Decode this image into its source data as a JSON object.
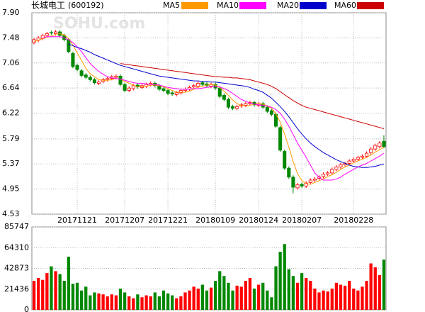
{
  "chart_data": {
    "type": "candlestick",
    "title": "长城电工",
    "code": "(600192)",
    "watermark": "SOHU.com",
    "up_color": "#ff0000",
    "down_color": "#008800",
    "grid": true,
    "categories": [
      null,
      null,
      null,
      null,
      null,
      null,
      null,
      null,
      null,
      null,
      "20171121",
      null,
      null,
      null,
      null,
      null,
      null,
      null,
      null,
      null,
      null,
      "20171207",
      null,
      null,
      null,
      null,
      null,
      null,
      null,
      null,
      null,
      "20171221",
      null,
      null,
      null,
      null,
      null,
      null,
      null,
      null,
      null,
      null,
      "20180109",
      null,
      null,
      null,
      null,
      null,
      null,
      null,
      null,
      null,
      "20180124",
      null,
      null,
      null,
      null,
      null,
      null,
      null,
      null,
      null,
      "20180207",
      null,
      null,
      null,
      null,
      null,
      null,
      null,
      null,
      null,
      null,
      null,
      "20180228",
      null,
      null,
      null,
      null,
      null,
      null,
      null
    ],
    "open": [
      7.4,
      7.44,
      7.47,
      7.52,
      7.57,
      7.55,
      7.58,
      7.52,
      7.45,
      7.22,
      7.02,
      6.93,
      6.86,
      6.82,
      6.78,
      6.72,
      6.75,
      6.78,
      6.8,
      6.82,
      6.84,
      6.7,
      6.6,
      6.63,
      6.69,
      6.65,
      6.67,
      6.7,
      6.72,
      6.68,
      6.63,
      6.6,
      6.56,
      6.53,
      6.56,
      6.6,
      6.62,
      6.66,
      6.67,
      6.73,
      6.71,
      6.67,
      6.7,
      6.64,
      6.52,
      6.45,
      6.33,
      6.3,
      6.34,
      6.35,
      6.38,
      6.4,
      6.35,
      6.38,
      6.32,
      6.26,
      6.2,
      5.98,
      5.58,
      5.3,
      5.15,
      4.97,
      5.03,
      5.0,
      5.06,
      5.1,
      5.13,
      5.16,
      5.2,
      5.22,
      5.28,
      5.32,
      5.36,
      5.38,
      5.42,
      5.45,
      5.48,
      5.5,
      5.56,
      5.62,
      5.66,
      5.75
    ],
    "high": [
      7.48,
      7.51,
      7.55,
      7.58,
      7.6,
      7.61,
      7.61,
      7.55,
      7.48,
      7.25,
      7.05,
      6.96,
      6.89,
      6.85,
      6.81,
      6.77,
      6.81,
      6.83,
      6.86,
      6.87,
      6.87,
      6.73,
      6.67,
      6.71,
      6.72,
      6.71,
      6.73,
      6.75,
      6.75,
      6.71,
      6.66,
      6.63,
      6.59,
      6.59,
      6.63,
      6.65,
      6.68,
      6.71,
      6.75,
      6.76,
      6.74,
      6.73,
      6.73,
      6.67,
      6.55,
      6.48,
      6.36,
      6.36,
      6.39,
      6.41,
      6.43,
      6.43,
      6.41,
      6.41,
      6.35,
      6.29,
      6.23,
      6.01,
      5.61,
      5.33,
      5.18,
      5.05,
      5.06,
      5.08,
      5.13,
      5.15,
      5.18,
      5.23,
      5.25,
      5.31,
      5.35,
      5.39,
      5.41,
      5.45,
      5.48,
      5.51,
      5.53,
      5.58,
      5.65,
      5.71,
      5.75,
      5.85
    ],
    "low": [
      7.37,
      7.41,
      7.44,
      7.49,
      7.53,
      7.52,
      7.49,
      7.42,
      7.22,
      6.97,
      6.92,
      6.82,
      6.79,
      6.75,
      6.7,
      6.69,
      6.72,
      6.75,
      6.77,
      6.79,
      6.67,
      6.57,
      6.57,
      6.6,
      6.63,
      6.62,
      6.64,
      6.67,
      6.65,
      6.59,
      6.57,
      6.52,
      6.51,
      6.5,
      6.53,
      6.57,
      6.59,
      6.63,
      6.64,
      6.67,
      6.65,
      6.64,
      6.61,
      6.47,
      6.42,
      6.29,
      6.27,
      6.27,
      6.31,
      6.32,
      6.35,
      6.33,
      6.32,
      6.29,
      6.22,
      6.17,
      5.97,
      5.57,
      5.27,
      5.12,
      4.88,
      4.94,
      4.97,
      4.97,
      5.03,
      5.07,
      5.1,
      5.13,
      5.17,
      5.19,
      5.25,
      5.29,
      5.33,
      5.35,
      5.39,
      5.42,
      5.45,
      5.47,
      5.53,
      5.59,
      5.63,
      5.63
    ],
    "close": [
      7.45,
      7.48,
      7.52,
      7.55,
      7.56,
      7.58,
      7.52,
      7.45,
      7.25,
      7.0,
      6.95,
      6.85,
      6.82,
      6.78,
      6.73,
      6.74,
      6.78,
      6.8,
      6.83,
      6.84,
      6.7,
      6.6,
      6.64,
      6.68,
      6.66,
      6.68,
      6.7,
      6.72,
      6.68,
      6.62,
      6.6,
      6.55,
      6.54,
      6.56,
      6.6,
      6.62,
      6.65,
      6.68,
      6.72,
      6.7,
      6.68,
      6.7,
      6.64,
      6.5,
      6.45,
      6.32,
      6.3,
      6.33,
      6.36,
      6.38,
      6.4,
      6.36,
      6.38,
      6.32,
      6.25,
      6.2,
      6.0,
      5.6,
      5.3,
      5.15,
      4.98,
      5.02,
      5.0,
      5.05,
      5.1,
      5.12,
      5.15,
      5.2,
      5.22,
      5.28,
      5.32,
      5.36,
      5.38,
      5.42,
      5.45,
      5.48,
      5.5,
      5.55,
      5.62,
      5.68,
      5.72,
      5.66
    ],
    "ylim": [
      4.53,
      7.9
    ],
    "yticks": [
      {
        "value": 7.9,
        "label": "7.90"
      },
      7.48,
      7.06,
      6.64,
      6.22,
      5.79,
      5.37,
      4.95,
      4.53
    ],
    "series": [
      {
        "name": "MA5",
        "color": "#ff9900",
        "values": [
          7.42,
          7.44,
          7.47,
          7.49,
          7.51,
          7.54,
          7.55,
          7.53,
          7.47,
          7.36,
          7.23,
          7.1,
          6.97,
          6.88,
          6.83,
          6.78,
          6.77,
          6.77,
          6.78,
          6.8,
          6.79,
          6.75,
          6.72,
          6.69,
          6.66,
          6.67,
          6.67,
          6.69,
          6.69,
          6.68,
          6.66,
          6.63,
          6.6,
          6.57,
          6.57,
          6.57,
          6.59,
          6.62,
          6.66,
          6.67,
          6.69,
          6.7,
          6.69,
          6.65,
          6.59,
          6.52,
          6.44,
          6.38,
          6.35,
          6.34,
          6.35,
          6.37,
          6.38,
          6.37,
          6.34,
          6.3,
          6.21,
          6.07,
          5.87,
          5.65,
          5.41,
          5.21,
          5.09,
          5.04,
          5.03,
          5.06,
          5.09,
          5.12,
          5.16,
          5.19,
          5.23,
          5.28,
          5.32,
          5.35,
          5.39,
          5.42,
          5.45,
          5.48,
          5.52,
          5.57,
          5.61,
          5.65
        ]
      },
      {
        "name": "MA10",
        "color": "#ff00ff",
        "values": [
          null,
          null,
          7.48,
          7.5,
          7.5,
          7.5,
          7.5,
          7.48,
          7.45,
          7.4,
          7.33,
          7.25,
          7.15,
          7.05,
          6.98,
          6.92,
          6.87,
          6.83,
          6.81,
          6.8,
          6.79,
          6.77,
          6.75,
          6.73,
          6.72,
          6.72,
          6.71,
          6.7,
          6.7,
          6.69,
          6.67,
          6.65,
          6.64,
          6.63,
          6.62,
          6.62,
          6.62,
          6.63,
          6.63,
          6.64,
          6.65,
          6.66,
          6.67,
          6.66,
          6.63,
          6.6,
          6.55,
          6.5,
          6.45,
          6.42,
          6.39,
          6.37,
          6.36,
          6.35,
          6.34,
          6.32,
          6.28,
          6.22,
          6.12,
          6.0,
          5.86,
          5.72,
          5.6,
          5.48,
          5.35,
          5.22,
          5.15,
          5.1,
          5.1,
          5.1,
          5.12,
          5.15,
          5.2,
          5.24,
          5.28,
          5.32,
          5.35,
          5.38,
          5.42,
          5.46,
          5.5,
          5.55
        ]
      },
      {
        "name": "MA20",
        "color": "#0000cc",
        "values": [
          null,
          null,
          null,
          null,
          null,
          null,
          null,
          null,
          7.38,
          7.35,
          7.32,
          7.3,
          7.27,
          7.24,
          7.2,
          7.17,
          7.14,
          7.11,
          7.08,
          7.05,
          7.02,
          7.0,
          6.98,
          6.96,
          6.94,
          6.92,
          6.9,
          6.88,
          6.86,
          6.84,
          6.83,
          6.82,
          6.81,
          6.8,
          6.79,
          6.78,
          6.77,
          6.76,
          6.76,
          6.75,
          6.75,
          6.74,
          6.74,
          6.73,
          6.72,
          6.71,
          6.7,
          6.69,
          6.68,
          6.67,
          6.65,
          6.62,
          6.6,
          6.57,
          6.52,
          6.47,
          6.4,
          6.33,
          6.25,
          6.16,
          6.06,
          5.96,
          5.87,
          5.79,
          5.72,
          5.66,
          5.61,
          5.56,
          5.52,
          5.48,
          5.44,
          5.41,
          5.38,
          5.35,
          5.33,
          5.32,
          5.31,
          5.31,
          5.32,
          5.33,
          5.35,
          5.37
        ]
      },
      {
        "name": "MA60",
        "color": "#cc0000",
        "values": [
          null,
          null,
          null,
          null,
          null,
          null,
          null,
          null,
          null,
          null,
          null,
          null,
          null,
          null,
          null,
          null,
          null,
          null,
          null,
          null,
          7.05,
          7.04,
          7.03,
          7.02,
          7.01,
          7.0,
          6.99,
          6.98,
          6.97,
          6.96,
          6.95,
          6.94,
          6.93,
          6.92,
          6.91,
          6.9,
          6.89,
          6.88,
          6.87,
          6.86,
          6.85,
          6.84,
          6.83,
          6.83,
          6.82,
          6.82,
          6.81,
          6.81,
          6.8,
          6.79,
          6.78,
          6.76,
          6.74,
          6.72,
          6.7,
          6.67,
          6.63,
          6.58,
          6.53,
          6.48,
          6.43,
          6.39,
          6.35,
          6.32,
          6.3,
          6.28,
          6.26,
          6.24,
          6.22,
          6.2,
          6.18,
          6.16,
          6.14,
          6.12,
          6.1,
          6.08,
          6.06,
          6.04,
          6.02,
          6.0,
          5.98,
          5.96
        ]
      }
    ],
    "volume": {
      "values": [
        30000,
        33000,
        31000,
        38000,
        45000,
        40000,
        37000,
        30000,
        55000,
        27000,
        28000,
        20000,
        24000,
        15000,
        18000,
        17000,
        16000,
        14000,
        16000,
        15000,
        22000,
        18000,
        14000,
        12000,
        16000,
        13000,
        15000,
        14000,
        18000,
        14000,
        20000,
        17000,
        15000,
        12000,
        14000,
        18000,
        20000,
        24000,
        22000,
        26000,
        20000,
        23000,
        30000,
        40000,
        35000,
        28000,
        20000,
        25000,
        24000,
        30000,
        33000,
        22000,
        26000,
        28000,
        20000,
        13000,
        45000,
        60000,
        68000,
        42000,
        35000,
        28000,
        38000,
        33000,
        30000,
        22000,
        18000,
        20000,
        19000,
        22000,
        28000,
        26000,
        25000,
        30000,
        22000,
        20000,
        24000,
        30000,
        48000,
        44000,
        36000,
        52000
      ],
      "ylim": [
        0,
        85747
      ],
      "yticks": [
        0,
        21436,
        42873,
        64310,
        85747
      ]
    }
  }
}
